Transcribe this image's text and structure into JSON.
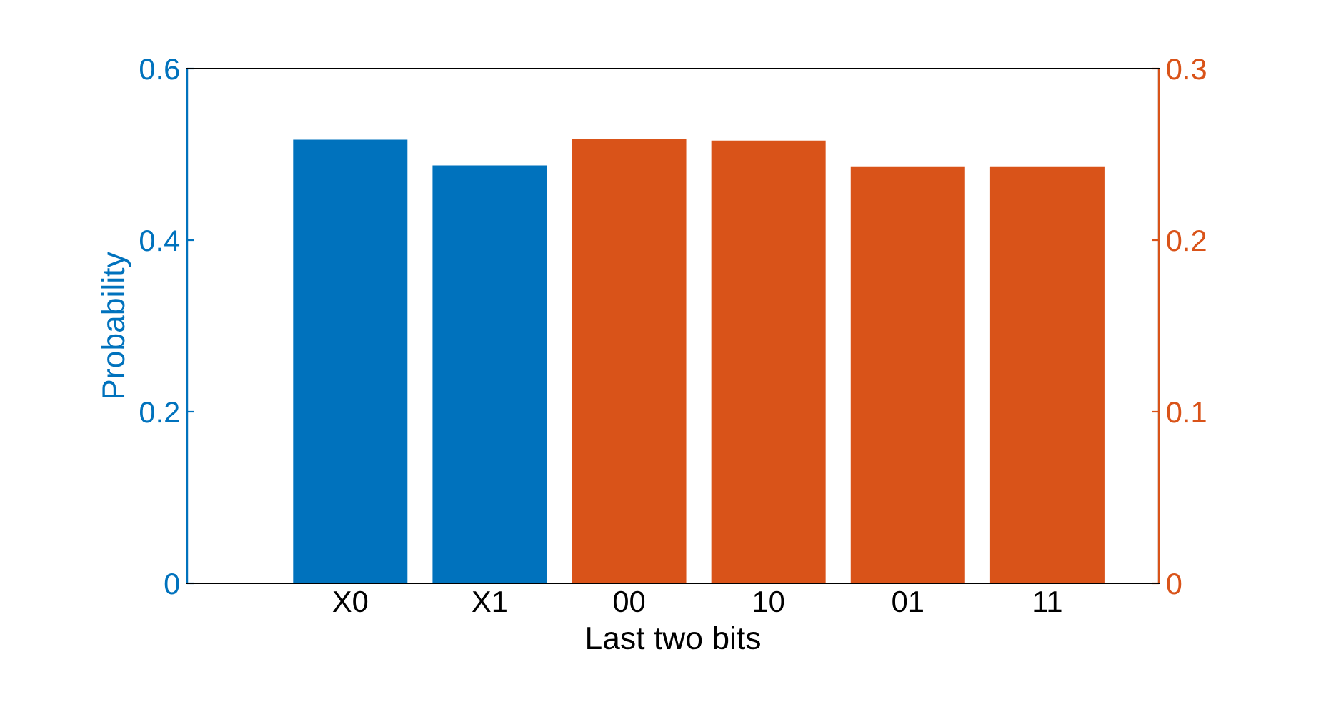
{
  "chart_data": {
    "type": "bar",
    "xlabel": "Last two bits",
    "ylabel": "Probability",
    "categories": [
      "X0",
      "X1",
      "00",
      "10",
      "01",
      "11"
    ],
    "series": [
      {
        "color": "#0072bd",
        "values": [
          0.517,
          0.487,
          null,
          null,
          null,
          null
        ]
      },
      {
        "color": "#d95319",
        "axis": "y2",
        "values": [
          null,
          null,
          0.259,
          0.258,
          0.243,
          0.243
        ]
      }
    ],
    "ylim": [
      0,
      0.6
    ],
    "yticks": [
      0,
      0.2,
      0.4,
      0.6
    ],
    "y2lim": [
      0,
      0.3
    ],
    "y2ticks": [
      0,
      0.1,
      0.2,
      0.3
    ],
    "grid": false,
    "legend": false
  }
}
